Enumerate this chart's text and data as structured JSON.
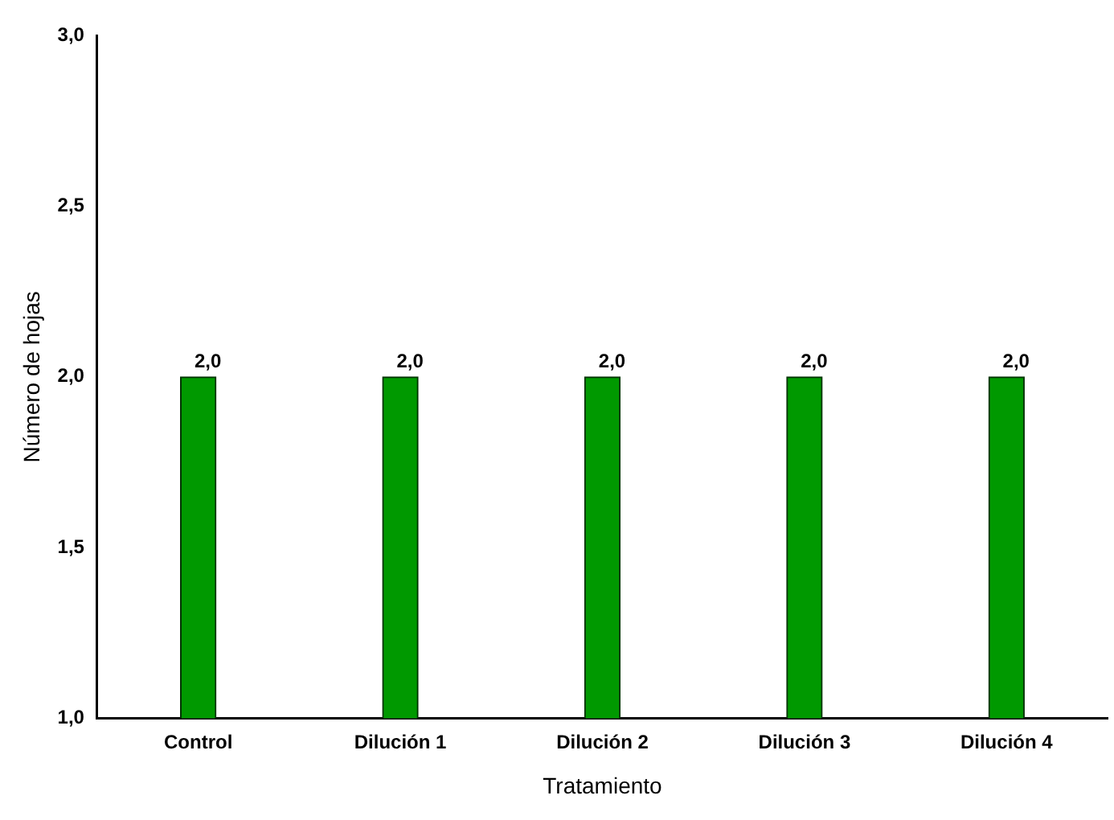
{
  "chart_data": {
    "type": "bar",
    "xlabel": "Tratamiento",
    "ylabel": "Número de hojas",
    "categories": [
      "Control",
      "Dilución 1",
      "Dilución 2",
      "Dilución 3",
      "Dilución 4"
    ],
    "values": [
      2.0,
      2.0,
      2.0,
      2.0,
      2.0
    ],
    "value_labels": [
      "2,0",
      "2,0",
      "2,0",
      "2,0",
      "2,0"
    ],
    "color": "#009900",
    "ylim": [
      1,
      3
    ],
    "yticks": [
      {
        "value": 1,
        "label": "1,0"
      },
      {
        "value": 1.5,
        "label": "1,5"
      },
      {
        "value": 2,
        "label": "2,0"
      },
      {
        "value": 2.5,
        "label": "2,5"
      },
      {
        "value": 3,
        "label": "3,0"
      }
    ],
    "grid": false,
    "legend": false
  }
}
